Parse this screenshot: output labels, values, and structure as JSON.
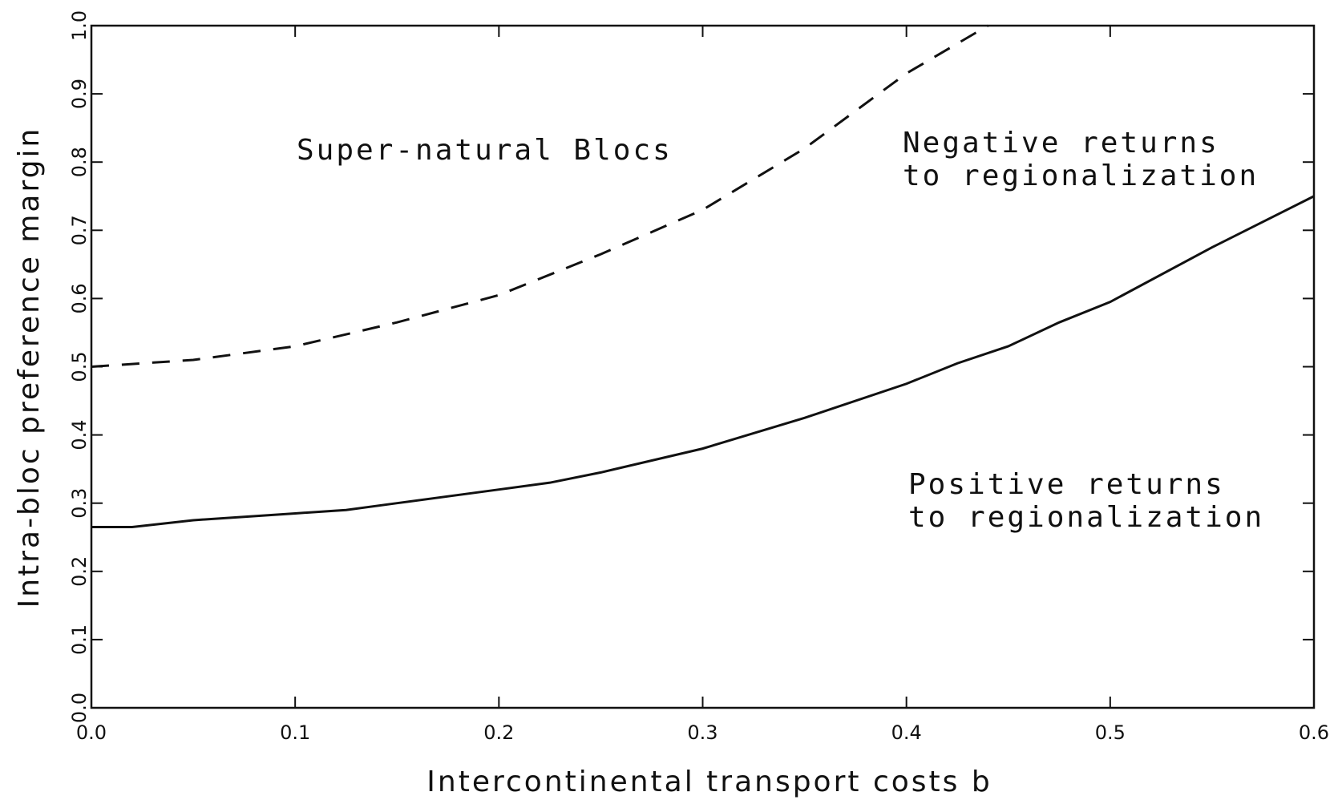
{
  "chart_data": {
    "type": "line",
    "xlabel": "Intercontinental transport costs b",
    "ylabel": "Intra-bloc preference margin",
    "xlim": [
      0,
      0.6
    ],
    "ylim": [
      0,
      1
    ],
    "xticks": [
      {
        "value": 0,
        "label": "0.0"
      },
      0.1,
      0.2,
      0.3,
      0.4,
      0.5,
      0.6
    ],
    "yticks": [
      {
        "value": 0,
        "label": "0.0"
      },
      0.1,
      0.2,
      0.3,
      0.4,
      0.5,
      0.6,
      0.7,
      0.8,
      0.9,
      {
        "value": 1,
        "label": "1.0"
      }
    ],
    "series": [
      {
        "color": "#111111",
        "style": "dashed",
        "x": [
          0,
          0.05,
          0.1,
          0.15,
          0.2,
          0.25,
          0.3,
          0.35,
          0.4,
          0.44
        ],
        "values": [
          0.5,
          0.51,
          0.53,
          0.565,
          0.605,
          0.665,
          0.73,
          0.82,
          0.93,
          1.0
        ]
      },
      {
        "color": "#111111",
        "style": "solid",
        "x": [
          0,
          0.02,
          0.05,
          0.1,
          0.125,
          0.15,
          0.2,
          0.225,
          0.25,
          0.3,
          0.35,
          0.4,
          0.425,
          0.45,
          0.475,
          0.5,
          0.55,
          0.6
        ],
        "values": [
          0.265,
          0.265,
          0.275,
          0.285,
          0.29,
          0.3,
          0.32,
          0.33,
          0.345,
          0.38,
          0.425,
          0.475,
          0.505,
          0.53,
          0.565,
          0.595,
          0.675,
          0.75
        ]
      }
    ],
    "annotations": [
      {
        "lines": [
          "Super-natural Blocs"
        ]
      },
      {
        "lines": [
          "Negative returns",
          "to regionalization"
        ]
      },
      {
        "lines": [
          "Positive returns",
          "to regionalization"
        ]
      }
    ]
  }
}
